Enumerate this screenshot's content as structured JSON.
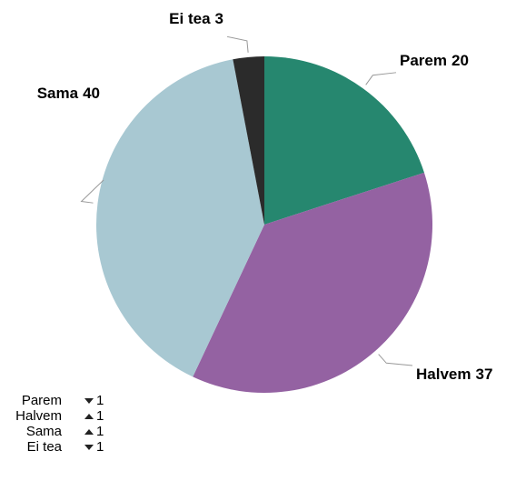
{
  "chart_data": {
    "type": "pie",
    "categories": [
      "Parem",
      "Halvem",
      "Sama",
      "Ei tea"
    ],
    "values": [
      20,
      37,
      40,
      3
    ],
    "colors": [
      "#26876f",
      "#9462a2",
      "#a8c8d2",
      "#2b2b2b"
    ],
    "legend": {
      "names": [
        "Parem",
        "Halvem",
        "Sama",
        "Ei tea"
      ],
      "changes": [
        {
          "direction": "down",
          "value": 1
        },
        {
          "direction": "up",
          "value": 1
        },
        {
          "direction": "up",
          "value": 1
        },
        {
          "direction": "down",
          "value": 1
        }
      ]
    }
  }
}
